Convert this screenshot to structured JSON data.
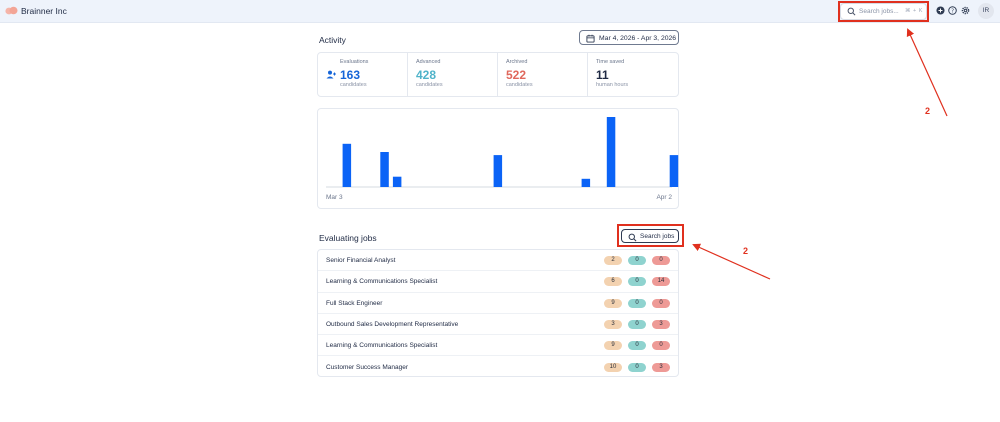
{
  "header": {
    "brand": "Brainner Inc",
    "search_placeholder": "Search jobs...",
    "search_shortcut": "⌘ + K",
    "avatar_initials": "IR",
    "icons": [
      "plus-circle-icon",
      "help-circle-icon",
      "gear-icon"
    ]
  },
  "activity": {
    "title": "Activity",
    "date_range": "Mar 4, 2026 - Apr 3, 2026",
    "stats": [
      {
        "label": "Evaluations",
        "value": "163",
        "sub": "candidates",
        "color": "#1565d8"
      },
      {
        "label": "Advanced",
        "value": "428",
        "sub": "candidates",
        "color": "#4fb3c9"
      },
      {
        "label": "Archived",
        "value": "522",
        "sub": "candidates",
        "color": "#e0685c"
      },
      {
        "label": "Time saved",
        "value": "11",
        "sub": "human hours",
        "color": "#1f2a44"
      }
    ]
  },
  "chart_data": {
    "type": "bar",
    "color": "#0b63f6",
    "x_start_label": "Mar 3",
    "x_end_label": "Apr 2",
    "days": 31,
    "bars": [
      {
        "day": 2,
        "value": 42
      },
      {
        "day": 8,
        "value": 34
      },
      {
        "day": 10,
        "value": 10
      },
      {
        "day": 26,
        "value": 31
      },
      {
        "day": 40,
        "value": 8
      },
      {
        "day": 44,
        "value": 68
      },
      {
        "day": 54,
        "value": 31
      }
    ]
  },
  "jobs": {
    "title": "Evaluating jobs",
    "search_label": "Search jobs",
    "rows": [
      {
        "name": "Senior Financial Analyst",
        "a": "2",
        "b": "0",
        "c": "0"
      },
      {
        "name": "Learning & Communications Specialist",
        "a": "6",
        "b": "0",
        "c": "14"
      },
      {
        "name": "Full Stack Engineer",
        "a": "9",
        "b": "0",
        "c": "0"
      },
      {
        "name": "Outbound Sales Development Representative",
        "a": "3",
        "b": "0",
        "c": "3"
      },
      {
        "name": "Learning & Communications Specialist",
        "a": "9",
        "b": "0",
        "c": "0"
      },
      {
        "name": "Customer Success Manager",
        "a": "10",
        "b": "0",
        "c": "3"
      }
    ]
  },
  "annotations": {
    "marker_top": "2",
    "marker_bottom": "2",
    "color": "#e0301e"
  }
}
